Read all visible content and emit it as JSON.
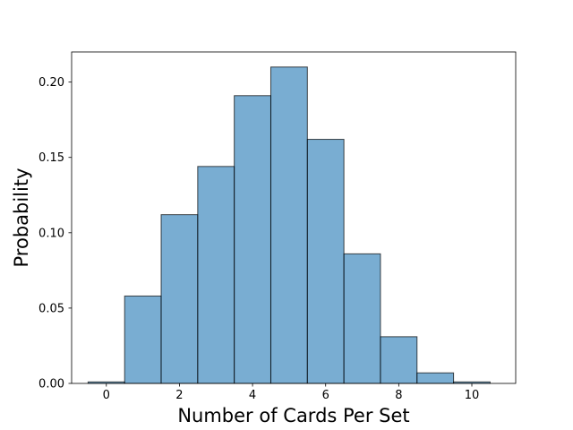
{
  "chart_data": {
    "type": "bar",
    "categories": [
      0,
      1,
      2,
      3,
      4,
      5,
      6,
      7,
      8,
      9,
      10
    ],
    "values": [
      0.001,
      0.058,
      0.112,
      0.144,
      0.191,
      0.21,
      0.162,
      0.086,
      0.031,
      0.007,
      0.001
    ],
    "bar_width": 1,
    "xlabel": "Number of Cards Per Set",
    "ylabel": "Probability",
    "xlim": [
      -0.95,
      11.2
    ],
    "ylim": [
      0,
      0.22
    ],
    "xticks": [
      0,
      2,
      4,
      6,
      8,
      10
    ],
    "xtick_labels": [
      "0",
      "2",
      "4",
      "6",
      "8",
      "10"
    ],
    "yticks": [
      0,
      0.05,
      0.1,
      0.15,
      0.2
    ],
    "ytick_labels": [
      "0.00",
      "0.05",
      "0.10",
      "0.15",
      "0.20"
    ],
    "grid": false,
    "bar_color": "#1f77b4"
  }
}
